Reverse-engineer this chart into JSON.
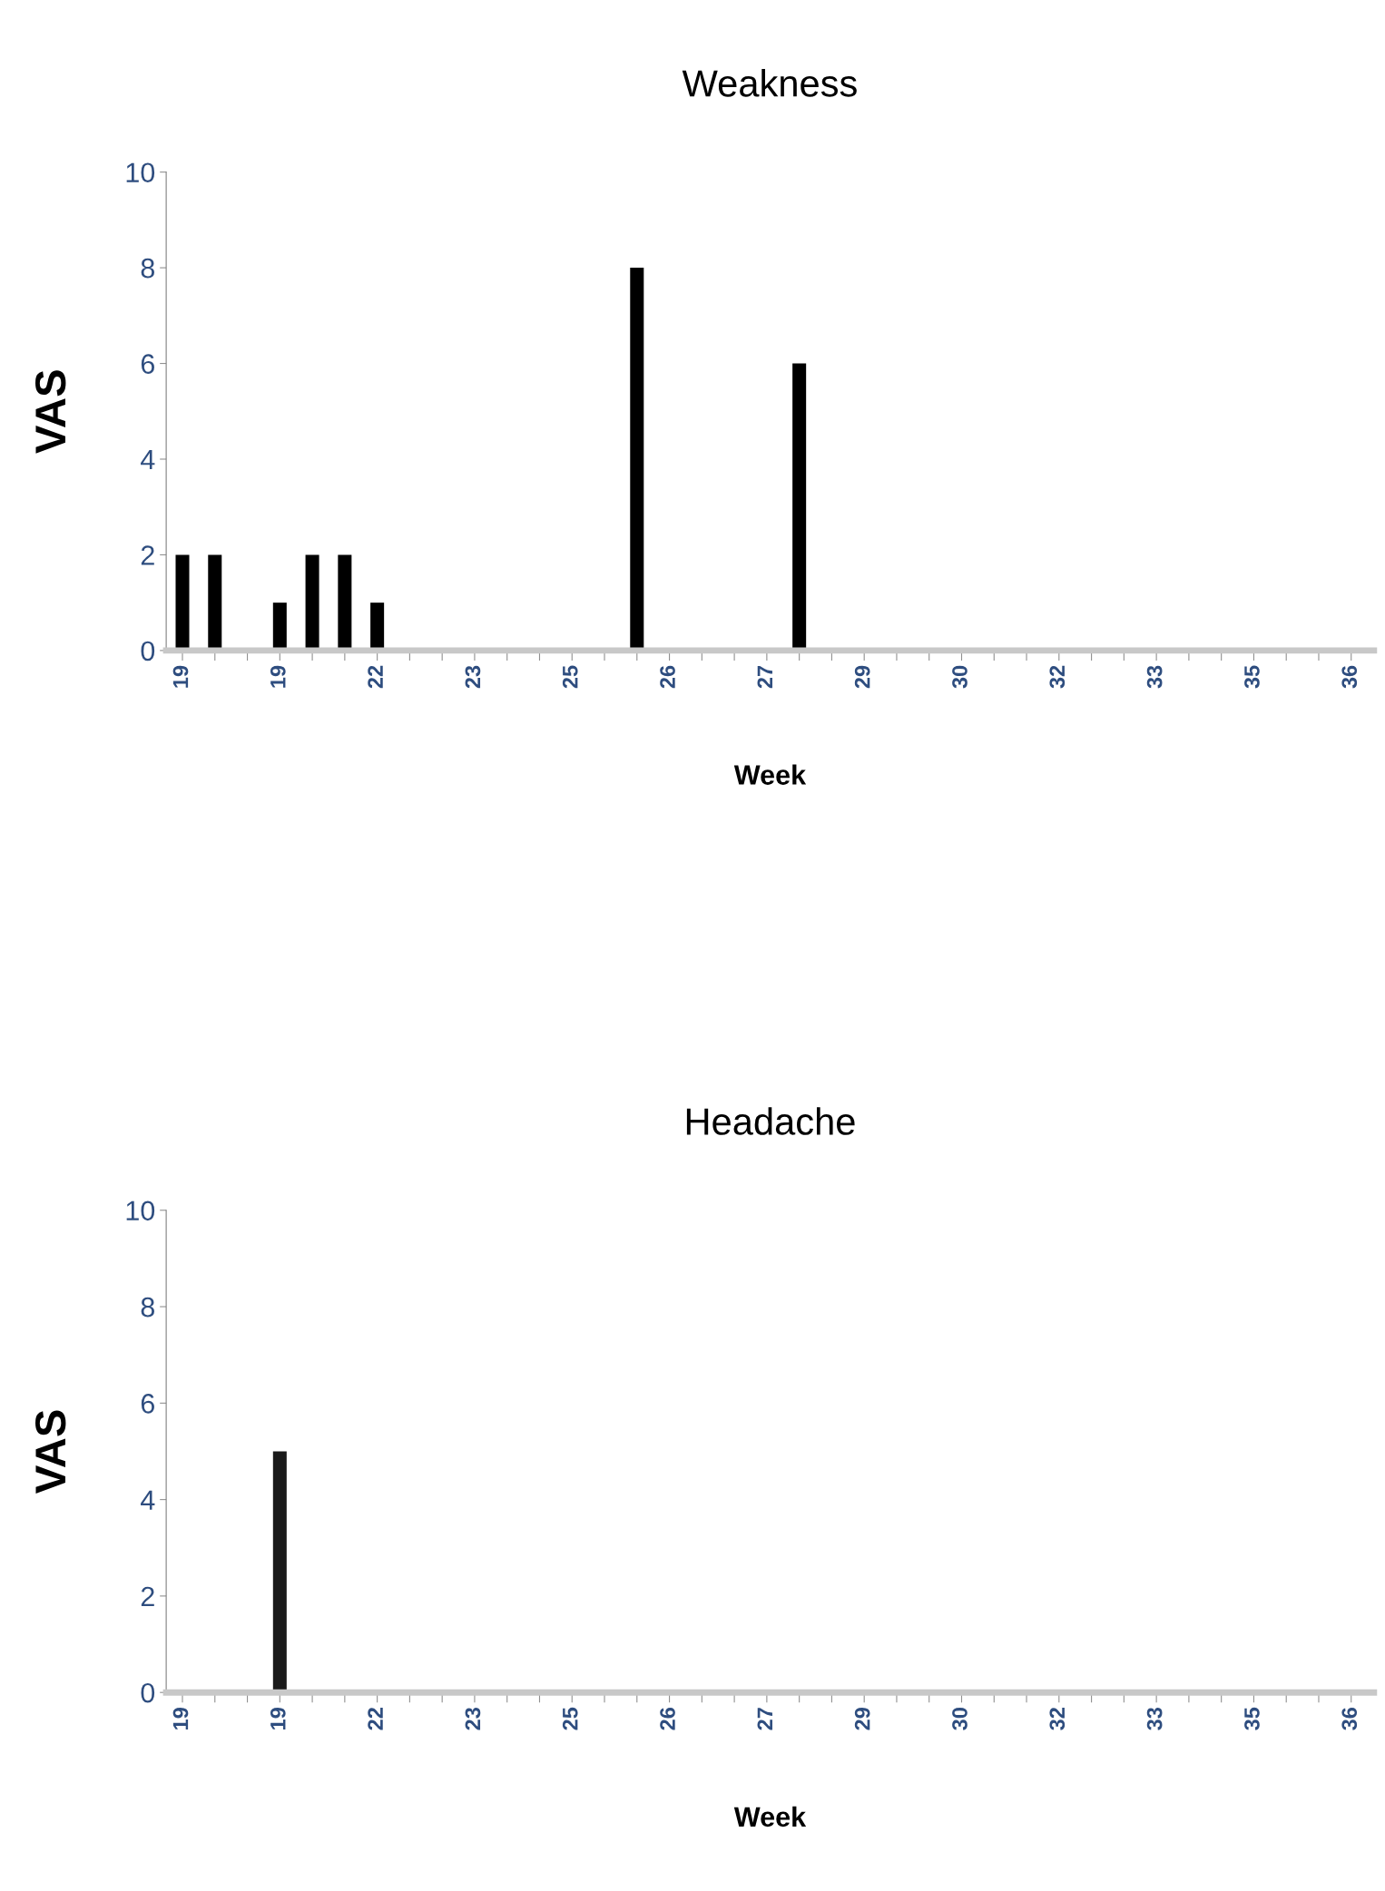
{
  "chart_data": [
    {
      "type": "bar",
      "title": "Weakness",
      "xlabel": "Week",
      "ylabel": "VAS",
      "categories": [
        "19",
        null,
        null,
        "19",
        null,
        null,
        "22",
        null,
        null,
        "23",
        null,
        null,
        "25",
        null,
        null,
        "26",
        null,
        null,
        "27",
        null,
        null,
        "29",
        null,
        null,
        "30",
        null,
        null,
        "32",
        null,
        null,
        "33",
        null,
        null,
        "35",
        null,
        null,
        "36"
      ],
      "values": [
        2,
        2,
        0,
        1,
        2,
        2,
        1,
        0,
        0,
        0,
        0,
        0,
        0,
        0,
        8,
        0,
        0,
        0,
        0,
        6,
        0,
        0,
        0,
        0,
        0,
        0,
        0,
        0,
        0,
        0,
        0,
        0,
        0,
        0,
        0,
        0,
        0
      ],
      "color": "#000000",
      "ylim": [
        0,
        10
      ],
      "yticks": [
        0,
        2,
        4,
        6,
        8,
        10
      ],
      "grid": false,
      "legend": false
    },
    {
      "type": "bar",
      "title": "Headache",
      "xlabel": "Week",
      "ylabel": "VAS",
      "categories": [
        "19",
        null,
        null,
        "19",
        null,
        null,
        "22",
        null,
        null,
        "23",
        null,
        null,
        "25",
        null,
        null,
        "26",
        null,
        null,
        "27",
        null,
        null,
        "29",
        null,
        null,
        "30",
        null,
        null,
        "32",
        null,
        null,
        "33",
        null,
        null,
        "35",
        null,
        null,
        "36"
      ],
      "values": [
        0,
        0,
        0,
        5,
        0,
        0,
        0,
        0,
        0,
        0,
        0,
        0,
        0,
        0,
        0,
        0,
        0,
        0,
        0,
        0,
        0,
        0,
        0,
        0,
        0,
        0,
        0,
        0,
        0,
        0,
        0,
        0,
        0,
        0,
        0,
        0,
        0
      ],
      "color": "#1a1a1a",
      "ylim": [
        0,
        10
      ],
      "yticks": [
        0,
        2,
        4,
        6,
        8,
        10
      ],
      "grid": false,
      "legend": false
    }
  ]
}
